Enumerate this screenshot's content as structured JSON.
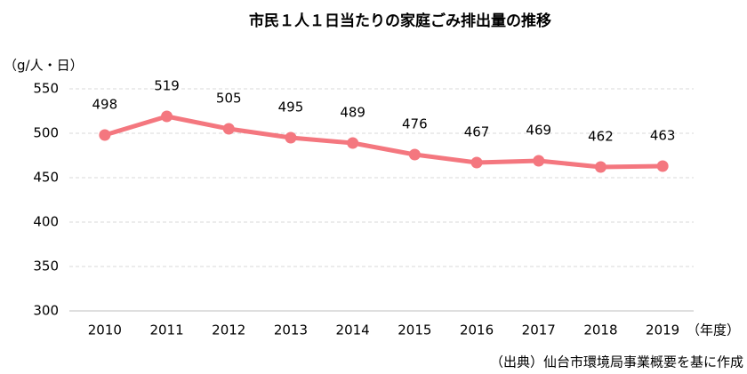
{
  "chart_data": {
    "type": "line",
    "title": "市民１人１日当たりの家庭ごみ排出量の推移",
    "y_label": "（g/人・日）",
    "x_label": "（年度）",
    "source": "（出典）仙台市環境局事業概要を基に作成",
    "categories": [
      "2010",
      "2011",
      "2012",
      "2013",
      "2014",
      "2015",
      "2016",
      "2017",
      "2018",
      "2019"
    ],
    "values": [
      498,
      519,
      505,
      495,
      489,
      476,
      467,
      469,
      462,
      463
    ],
    "color": "#f4777f",
    "ylim": [
      300,
      550
    ],
    "yticks": [
      300,
      350,
      400,
      450,
      500,
      550
    ],
    "grid": true
  }
}
